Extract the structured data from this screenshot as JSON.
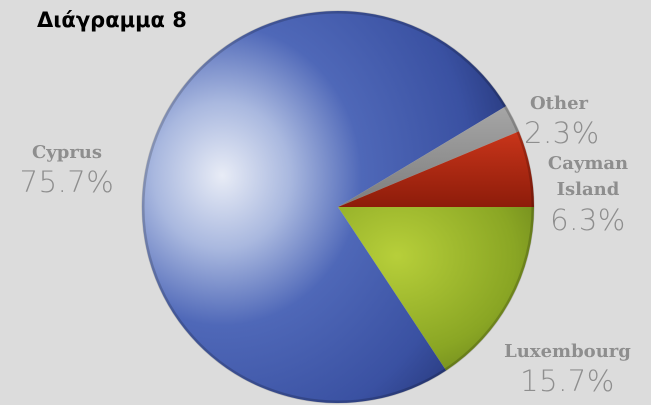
{
  "chart_data": {
    "type": "pie",
    "title": "Διάγραμμα 8",
    "slices": [
      {
        "label": "Cyprus",
        "value": 75.7,
        "value_label": "75.7%",
        "color": "#3e56a8"
      },
      {
        "label": "Luxembourg",
        "value": 15.7,
        "value_label": "15.7%",
        "color": "#8aa624"
      },
      {
        "label": "Cayman Island",
        "value": 6.3,
        "value_label": "6.3%",
        "color": "#b3260f"
      },
      {
        "label": "Other",
        "value": 2.3,
        "value_label": "2.3%",
        "color": "#8e8e8e"
      }
    ],
    "label_lines": {
      "cyprus": "Cyprus",
      "luxembourg": "Luxembourg",
      "cayman_line1": "Cayman",
      "cayman_line2": "Island",
      "other": "Other"
    },
    "label_color": "#8e8e8e"
  }
}
